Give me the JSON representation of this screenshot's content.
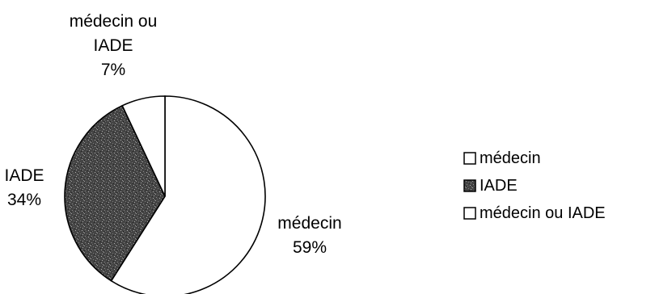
{
  "chart_data": {
    "type": "pie",
    "title": "",
    "slices": [
      {
        "name": "médecin",
        "label_lines": [
          "médecin",
          "59%"
        ],
        "value": 59,
        "fill": "#ffffff",
        "pattern": "none"
      },
      {
        "name": "IADE",
        "label_lines": [
          "IADE",
          "34%"
        ],
        "value": 34,
        "fill": "#3a3a3a",
        "pattern": "dark-speckle"
      },
      {
        "name": "médecin ou IADE",
        "label_lines": [
          "médecin ou",
          "IADE",
          "7%"
        ],
        "value": 7,
        "fill": "#ffffff",
        "pattern": "none"
      }
    ],
    "legend": {
      "position": "right",
      "entries": [
        "médecin",
        "IADE",
        "médecin ou IADE"
      ]
    },
    "start_angle": "12 o'clock",
    "direction": "clockwise"
  }
}
